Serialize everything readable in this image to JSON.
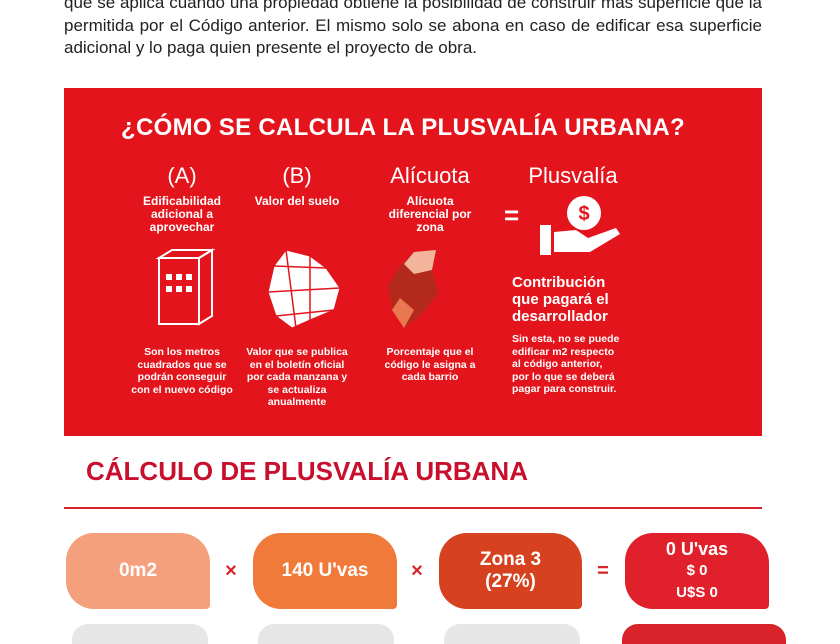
{
  "intro": {
    "text": "que se aplica cuando una propiedad obtiene la posibilidad de construir más superficie que la permitida por el Código anterior. El mismo solo se abona en caso de edificar esa superficie adicional y lo paga quien presente el proyecto de obra."
  },
  "infographic": {
    "title": "¿CÓMO SE CALCULA LA PLUSVALÍA URBANA?",
    "columns": [
      {
        "label": "(A)",
        "subtitle": "Edificabilidad adicional a aprovechar",
        "description": "Son los metros cuadrados que se podrán conseguir con el nuevo código"
      },
      {
        "label": "(B)",
        "subtitle": "Valor del suelo",
        "description": "Valor que se publica en el boletín oficial por cada manzana y se actualiza anualmente"
      },
      {
        "label": "Alícuota",
        "subtitle": "Alícuota diferencial por zona",
        "description": "Porcentaje que el código le asigna a cada barrio"
      }
    ],
    "equals": "=",
    "result": {
      "label": "Plusvalía",
      "subtitle": "Contribución que pagará el desarrollador",
      "description": "Sin esta, no se puede edificar m2 respecto al código anterior, por lo que se deberá pagar para construir."
    }
  },
  "calculator": {
    "title": "CÁLCULO DE PLUSVALÍA URBANA",
    "inputs": [
      "0m2",
      "140 U'vas",
      "Zona 3 (27%)"
    ],
    "operators": [
      "×",
      "×",
      "="
    ],
    "result": [
      "0 U'vas",
      "$ 0",
      "U$S 0"
    ]
  }
}
